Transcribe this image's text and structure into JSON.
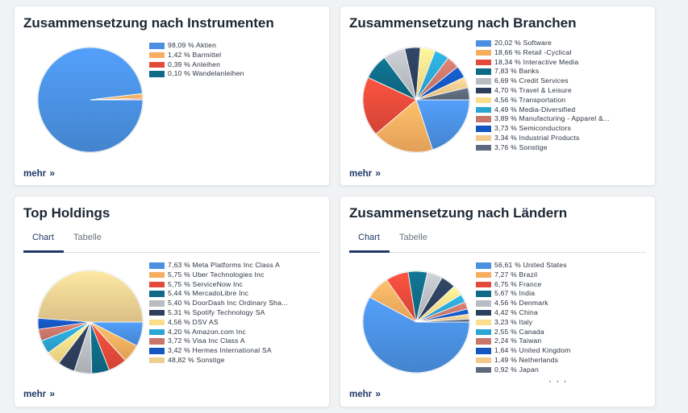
{
  "colors": {
    "palette": [
      "#4a8fe0",
      "#f6ad60",
      "#e34a3a",
      "#0f6a86",
      "#b9bcc2",
      "#2d3f5c",
      "#fcdd8a",
      "#2ba5d2",
      "#c9766a",
      "#1557c0",
      "#f3c98b",
      "#5d6a7e"
    ],
    "sonstige_holdings": "#ecd092",
    "link": "#1f3a66"
  },
  "instrumente": {
    "title": "Zusammensetzung nach Instrumenten",
    "more_label": "mehr",
    "more_icon": "double-chevron-right-icon",
    "legend": [
      {
        "label": "98,09 % Aktien",
        "value": 98.09,
        "color": "#4a8fe0"
      },
      {
        "label": "1,42 % Barmittel",
        "value": 1.42,
        "color": "#f6ad60"
      },
      {
        "label": "0,39 % Anleihen",
        "value": 0.39,
        "color": "#e34a3a"
      },
      {
        "label": "0,10 % Wandelanleihen",
        "value": 0.1,
        "color": "#0f6a86"
      }
    ]
  },
  "branchen": {
    "title": "Zusammensetzung nach Branchen",
    "more_label": "mehr",
    "legend": [
      {
        "label": "20,02 % Software",
        "value": 20.02,
        "color": "#4a8fe0"
      },
      {
        "label": "18,66 % Retail -Cyclical",
        "value": 18.66,
        "color": "#f6ad60"
      },
      {
        "label": "18,34 % Interactive Media",
        "value": 18.34,
        "color": "#e34a3a"
      },
      {
        "label": "7,83 % Banks",
        "value": 7.83,
        "color": "#0f6a86"
      },
      {
        "label": "6,69 % Credit Services",
        "value": 6.69,
        "color": "#b9bcc2"
      },
      {
        "label": "4,70 % Travel & Leisure",
        "value": 4.7,
        "color": "#2d3f5c"
      },
      {
        "label": "4,56 % Transportation",
        "value": 4.56,
        "color": "#fcdd8a"
      },
      {
        "label": "4,49 % Media-Diversified",
        "value": 4.49,
        "color": "#2ba5d2"
      },
      {
        "label": "3,89 % Manufacturing - Apparel &...",
        "value": 3.89,
        "color": "#c9766a"
      },
      {
        "label": "3,73 % Semiconductors",
        "value": 3.73,
        "color": "#1557c0"
      },
      {
        "label": "3,34 % Industrial Products",
        "value": 3.34,
        "color": "#f3c98b"
      },
      {
        "label": "3,76 % Sonstige",
        "value": 3.76,
        "color": "#5d6a7e"
      }
    ]
  },
  "holdings": {
    "title": "Top Holdings",
    "tabs": [
      "Chart",
      "Tabelle"
    ],
    "active_tab": "Chart",
    "more_label": "mehr",
    "legend": [
      {
        "label": "7,63 % Meta Platforms Inc Class A",
        "value": 7.63,
        "color": "#4a8fe0"
      },
      {
        "label": "5,75 % Uber Technologies Inc",
        "value": 5.75,
        "color": "#f6ad60"
      },
      {
        "label": "5,75 % ServiceNow Inc",
        "value": 5.75,
        "color": "#e34a3a"
      },
      {
        "label": "5,44 % MercadoLibre Inc",
        "value": 5.44,
        "color": "#0f6a86"
      },
      {
        "label": "5,40 % DoorDash Inc Ordinary Sha...",
        "value": 5.4,
        "color": "#b9bcc2"
      },
      {
        "label": "5,31 % Spotify Technology SA",
        "value": 5.31,
        "color": "#2d3f5c"
      },
      {
        "label": "4,56 % DSV AS",
        "value": 4.56,
        "color": "#fcdd8a"
      },
      {
        "label": "4,20 % Amazon.com Inc",
        "value": 4.2,
        "color": "#2ba5d2"
      },
      {
        "label": "3,72 % Visa Inc Class A",
        "value": 3.72,
        "color": "#c9766a"
      },
      {
        "label": "3,42 % Hermes International SA",
        "value": 3.42,
        "color": "#1557c0"
      },
      {
        "label": "48,82 % Sonstige",
        "value": 48.82,
        "color": "#ecd092"
      }
    ]
  },
  "laender": {
    "title": "Zusammensetzung nach Ländern",
    "tabs": [
      "Chart",
      "Tabelle"
    ],
    "active_tab": "Chart",
    "more_label": "mehr",
    "ellipsis": "· · ·",
    "legend": [
      {
        "label": "56,61 % United States",
        "value": 56.61,
        "color": "#4a8fe0"
      },
      {
        "label": "7,27 % Brazil",
        "value": 7.27,
        "color": "#f6ad60"
      },
      {
        "label": "6,75 % France",
        "value": 6.75,
        "color": "#e34a3a"
      },
      {
        "label": "5,67 % India",
        "value": 5.67,
        "color": "#0f6a86"
      },
      {
        "label": "4,56 % Denmark",
        "value": 4.56,
        "color": "#b9bcc2"
      },
      {
        "label": "4,42 % China",
        "value": 4.42,
        "color": "#2d3f5c"
      },
      {
        "label": "3,23 % Italy",
        "value": 3.23,
        "color": "#fcdd8a"
      },
      {
        "label": "2,55 % Canada",
        "value": 2.55,
        "color": "#2ba5d2"
      },
      {
        "label": "2,24 % Taiwan",
        "value": 2.24,
        "color": "#c9766a"
      },
      {
        "label": "1,64 % United Kingdom",
        "value": 1.64,
        "color": "#1557c0"
      },
      {
        "label": "1,49 % Netherlands",
        "value": 1.49,
        "color": "#f3c98b"
      },
      {
        "label": "0,92 % Japan",
        "value": 0.92,
        "color": "#5d6a7e"
      }
    ]
  },
  "chart_data": [
    {
      "type": "pie",
      "title": "Zusammensetzung nach Instrumenten",
      "categories": [
        "Aktien",
        "Barmittel",
        "Anleihen",
        "Wandelanleihen"
      ],
      "values": [
        98.09,
        1.42,
        0.39,
        0.1
      ]
    },
    {
      "type": "pie",
      "title": "Zusammensetzung nach Branchen",
      "categories": [
        "Software",
        "Retail -Cyclical",
        "Interactive Media",
        "Banks",
        "Credit Services",
        "Travel & Leisure",
        "Transportation",
        "Media-Diversified",
        "Manufacturing - Apparel &...",
        "Semiconductors",
        "Industrial Products",
        "Sonstige"
      ],
      "values": [
        20.02,
        18.66,
        18.34,
        7.83,
        6.69,
        4.7,
        4.56,
        4.49,
        3.89,
        3.73,
        3.34,
        3.76
      ]
    },
    {
      "type": "pie",
      "title": "Top Holdings",
      "categories": [
        "Meta Platforms Inc Class A",
        "Uber Technologies Inc",
        "ServiceNow Inc",
        "MercadoLibre Inc",
        "DoorDash Inc Ordinary Sha...",
        "Spotify Technology SA",
        "DSV AS",
        "Amazon.com Inc",
        "Visa Inc Class A",
        "Hermes International SA",
        "Sonstige"
      ],
      "values": [
        7.63,
        5.75,
        5.75,
        5.44,
        5.4,
        5.31,
        4.56,
        4.2,
        3.72,
        3.42,
        48.82
      ]
    },
    {
      "type": "pie",
      "title": "Zusammensetzung nach Ländern",
      "categories": [
        "United States",
        "Brazil",
        "France",
        "India",
        "Denmark",
        "China",
        "Italy",
        "Canada",
        "Taiwan",
        "United Kingdom",
        "Netherlands",
        "Japan"
      ],
      "values": [
        56.61,
        7.27,
        6.75,
        5.67,
        4.56,
        4.42,
        3.23,
        2.55,
        2.24,
        1.64,
        1.49,
        0.92
      ]
    }
  ]
}
